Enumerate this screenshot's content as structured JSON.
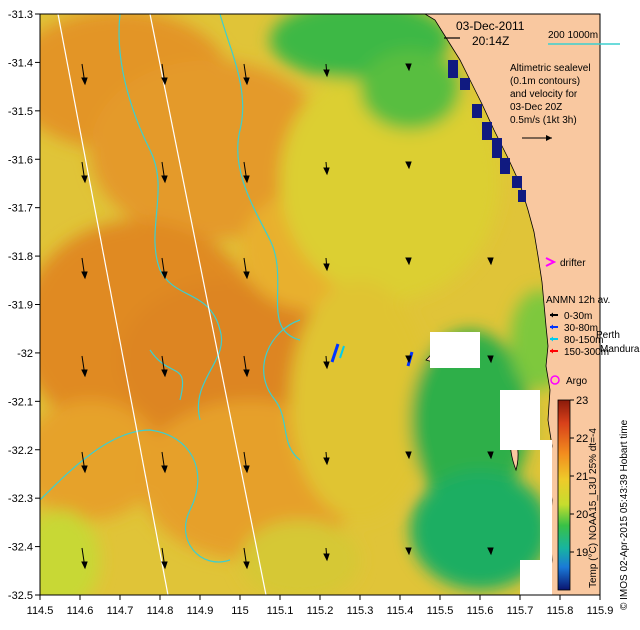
{
  "header": {
    "date": "03-Dec-2011",
    "time": "20:14Z",
    "scale_label": "200  1000m"
  },
  "legend_note": {
    "line1": "Altimetric sealevel",
    "line2": "(0.1m contours)",
    "line3": "and velocity for",
    "line4": "03-Dec 20Z",
    "line5": "0.5m/s (1kt 3h)"
  },
  "places": {
    "perth": "Perth",
    "mandurah": "Mandurah"
  },
  "markers": {
    "drifter": "drifter",
    "argo": "Argo",
    "anmn_title": "ANMN 12h av.",
    "anmn_items": [
      {
        "label": "0-30m",
        "color": "#000000"
      },
      {
        "label": "30-80m",
        "color": "#0033ff"
      },
      {
        "label": "80-150m",
        "color": "#00ccee"
      },
      {
        "label": "150-300m",
        "color": "#ff0000"
      }
    ]
  },
  "axes": {
    "x_ticks": [
      "114.5",
      "114.6",
      "114.7",
      "114.8",
      "114.9",
      "115",
      "115.1",
      "115.2",
      "115.3",
      "115.4",
      "115.5",
      "115.6",
      "115.7",
      "115.8",
      "115.9"
    ],
    "y_ticks": [
      "-31.3",
      "-31.4",
      "-31.5",
      "-31.6",
      "-31.7",
      "-31.8",
      "-31.9",
      "-32",
      "-32.1",
      "-32.2",
      "-32.3",
      "-32.4",
      "-32.5"
    ]
  },
  "colorbar": {
    "label": "Temp (°C) NOAA15_L3U 25% dt=-4",
    "ticks": [
      "23",
      "22",
      "21",
      "20",
      "19"
    ],
    "range": [
      18,
      23
    ]
  },
  "credit": "© IMOS 02-Apr-2015 05:43:39 Hobart time",
  "colors": {
    "land": "#f9c8a0",
    "sea_warm": "#e69a2a",
    "sea_mid": "#dcd834",
    "sea_cool": "#16b04a",
    "contour": "#3ccfcf",
    "swath": "#ffffff"
  }
}
